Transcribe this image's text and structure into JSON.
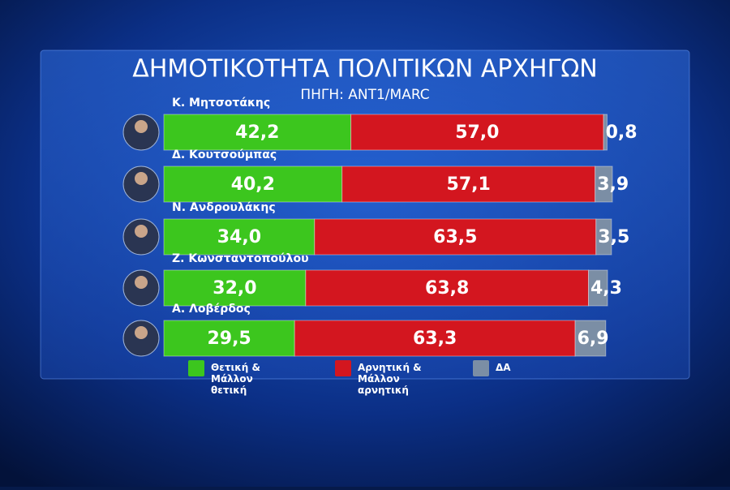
{
  "chart_data": {
    "type": "bar",
    "orientation": "horizontal",
    "stacked": true,
    "title": "ΔΗΜΟΤΙΚΟΤΗΤΑ ΠΟΛΙΤΙΚΩΝ ΑΡΧΗΓΩΝ",
    "subtitle": "ΠΗΓΗ: ANT1/MARC",
    "categories": [
      "Κ. Μητσοτάκης",
      "Δ. Κουτσούμπας",
      "Ν. Ανδρουλάκης",
      "Ζ. Κωνσταντοπούλου",
      "Α. Λοβέρδος"
    ],
    "series": [
      {
        "name": "Θετική & Μάλλον θετική",
        "color": "#3cc61e",
        "values": [
          42.2,
          40.2,
          34.0,
          32.0,
          29.5
        ],
        "value_labels": [
          "42,2",
          "40,2",
          "34,0",
          "32,0",
          "29,5"
        ]
      },
      {
        "name": "Αρνητική & Μάλλον αρνητική",
        "color": "#d3161f",
        "values": [
          57.0,
          57.1,
          63.5,
          63.8,
          63.3
        ],
        "value_labels": [
          "57,0",
          "57,1",
          "63,5",
          "63,8",
          "63,3"
        ]
      },
      {
        "name": "ΔΑ",
        "color": "#7b8ea5",
        "values": [
          0.8,
          3.9,
          3.5,
          4.3,
          6.9
        ],
        "value_labels": [
          "0,8",
          "3,9",
          "3,5",
          "4,3",
          "6,9"
        ]
      }
    ]
  }
}
